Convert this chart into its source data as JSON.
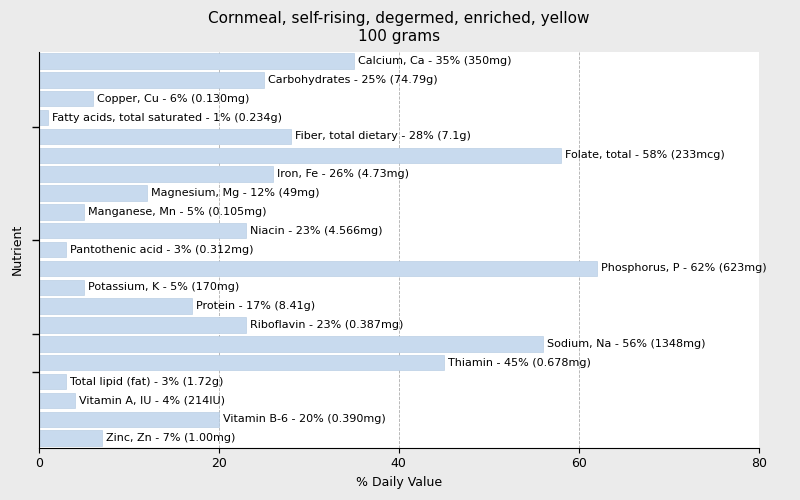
{
  "title": "Cornmeal, self-rising, degermed, enriched, yellow\n100 grams",
  "xlabel": "% Daily Value",
  "ylabel": "Nutrient",
  "xlim": [
    0,
    80
  ],
  "bar_color": "#c8daee",
  "bar_edge_color": "#b0c8e0",
  "bg_color": "#ebebeb",
  "plot_bg_color": "#ffffff",
  "nutrients": [
    {
      "label": "Calcium, Ca - 35% (350mg)",
      "value": 35
    },
    {
      "label": "Carbohydrates - 25% (74.79g)",
      "value": 25
    },
    {
      "label": "Copper, Cu - 6% (0.130mg)",
      "value": 6
    },
    {
      "label": "Fatty acids, total saturated - 1% (0.234g)",
      "value": 1
    },
    {
      "label": "Fiber, total dietary - 28% (7.1g)",
      "value": 28
    },
    {
      "label": "Folate, total - 58% (233mcg)",
      "value": 58
    },
    {
      "label": "Iron, Fe - 26% (4.73mg)",
      "value": 26
    },
    {
      "label": "Magnesium, Mg - 12% (49mg)",
      "value": 12
    },
    {
      "label": "Manganese, Mn - 5% (0.105mg)",
      "value": 5
    },
    {
      "label": "Niacin - 23% (4.566mg)",
      "value": 23
    },
    {
      "label": "Pantothenic acid - 3% (0.312mg)",
      "value": 3
    },
    {
      "label": "Phosphorus, P - 62% (623mg)",
      "value": 62
    },
    {
      "label": "Potassium, K - 5% (170mg)",
      "value": 5
    },
    {
      "label": "Protein - 17% (8.41g)",
      "value": 17
    },
    {
      "label": "Riboflavin - 23% (0.387mg)",
      "value": 23
    },
    {
      "label": "Sodium, Na - 56% (1348mg)",
      "value": 56
    },
    {
      "label": "Thiamin - 45% (0.678mg)",
      "value": 45
    },
    {
      "label": "Total lipid (fat) - 3% (1.72g)",
      "value": 3
    },
    {
      "label": "Vitamin A, IU - 4% (214IU)",
      "value": 4
    },
    {
      "label": "Vitamin B-6 - 20% (0.390mg)",
      "value": 20
    },
    {
      "label": "Zinc, Zn - 7% (1.00mg)",
      "value": 7
    }
  ],
  "ytick_positions": [
    2.5,
    7.5,
    12.5,
    17.5
  ],
  "tick_fontsize": 9,
  "label_fontsize": 8,
  "title_fontsize": 11,
  "xticks": [
    0,
    20,
    40,
    60,
    80
  ]
}
